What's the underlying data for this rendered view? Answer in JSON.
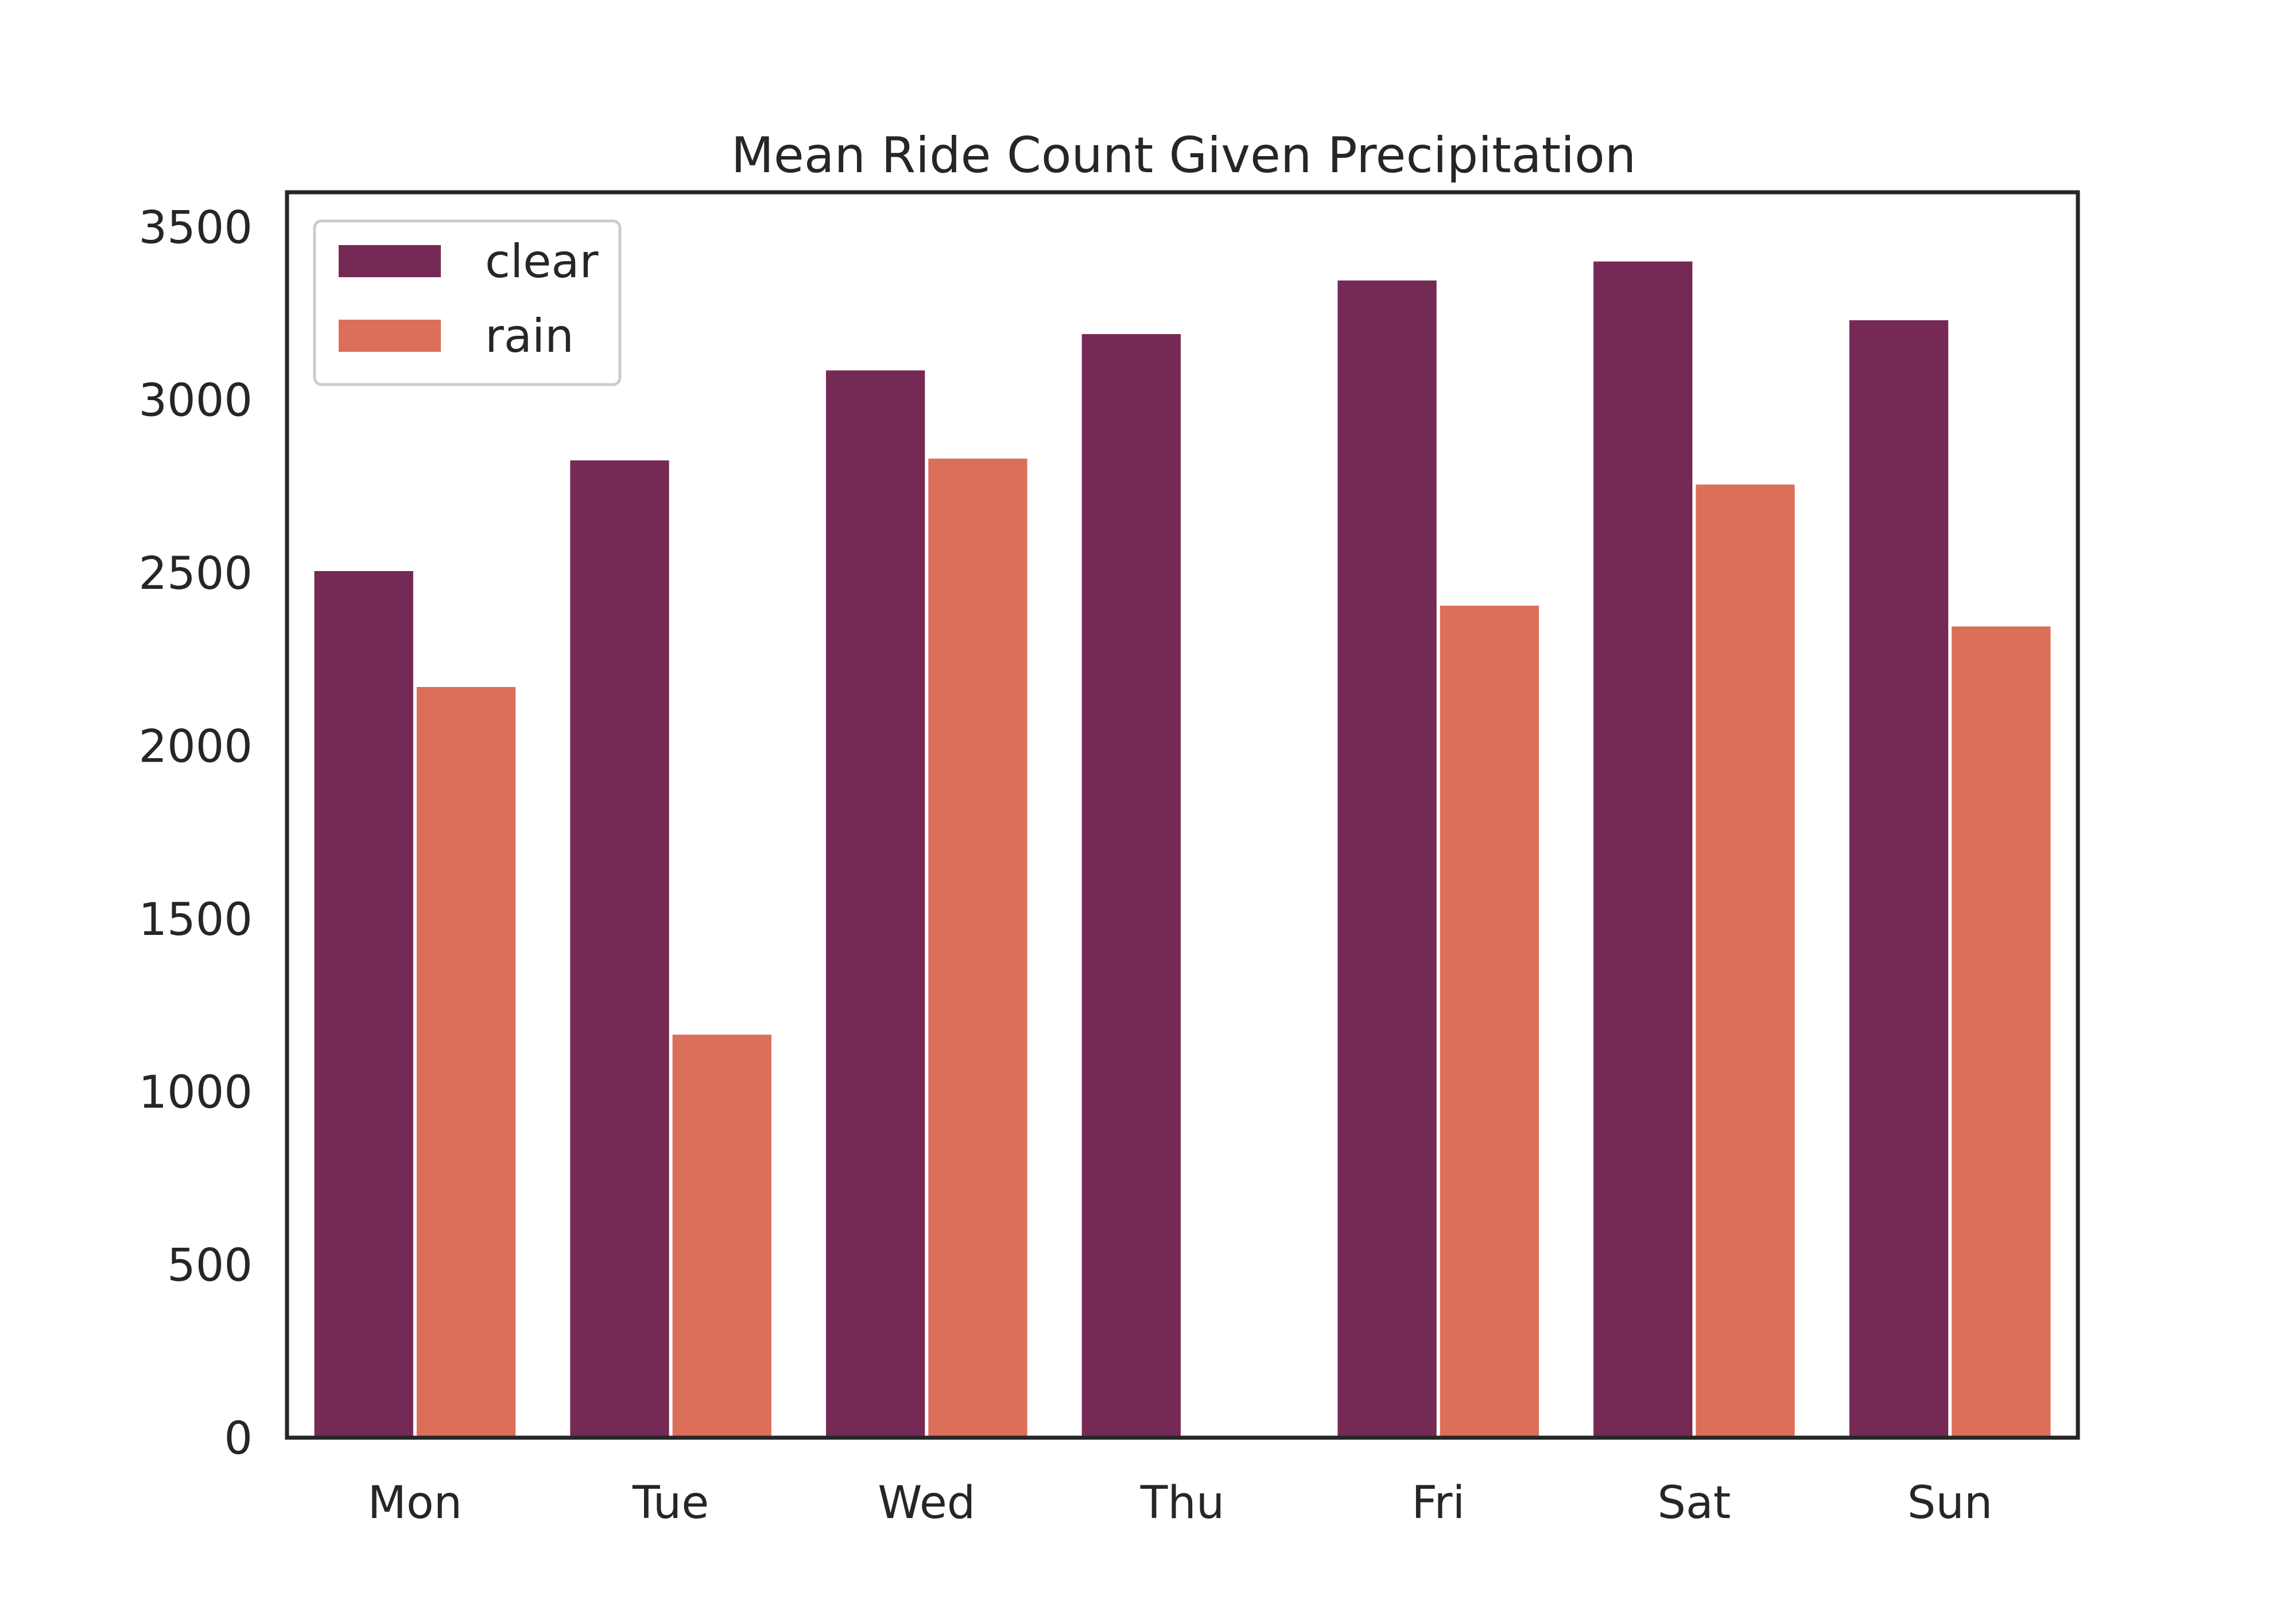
{
  "chart_data": {
    "type": "bar",
    "title": "Mean Ride Count Given Precipitation",
    "xlabel": "",
    "ylabel": "",
    "categories": [
      "Mon",
      "Tue",
      "Wed",
      "Thu",
      "Fri",
      "Sat",
      "Sun"
    ],
    "series": [
      {
        "name": "clear",
        "color": "#752a55",
        "values": [
          2505,
          2825,
          3085,
          3190,
          3345,
          3400,
          3230
        ]
      },
      {
        "name": "rain",
        "color": "#db6f5a",
        "values": [
          2170,
          1165,
          2830,
          null,
          2405,
          2755,
          2345
        ]
      }
    ],
    "ylim": [
      0,
      3600
    ],
    "yticks": [
      "0",
      "500",
      "1000",
      "1500",
      "2000",
      "2500",
      "3000",
      "3500"
    ],
    "grid": false,
    "legend": {
      "position": "top-left"
    }
  }
}
